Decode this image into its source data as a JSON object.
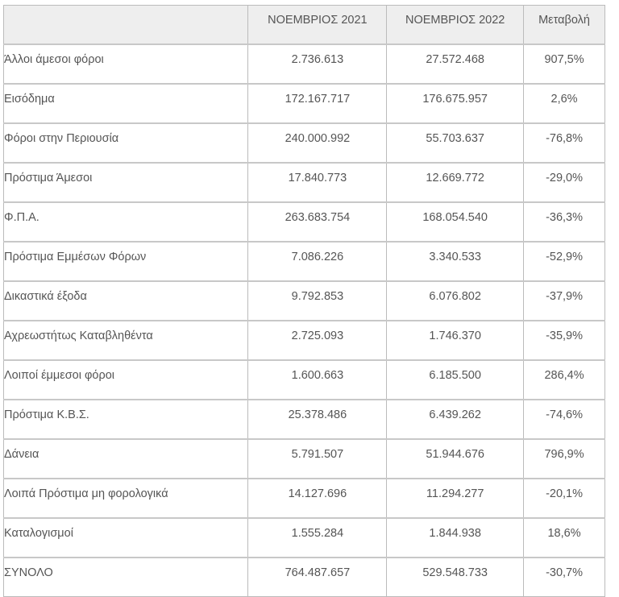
{
  "headers": [
    "",
    "ΝΟΕΜΒΡΙΟΣ 2021",
    "ΝΟΕΜΒΡΙΟΣ 2022",
    "Μεταβολή"
  ],
  "rows": [
    [
      "Άλλοι άμεσοι φόροι",
      "2.736.613",
      "27.572.468",
      "907,5%"
    ],
    [
      "Εισόδημα",
      "172.167.717",
      "176.675.957",
      "2,6%"
    ],
    [
      "Φόροι στην Περιουσία",
      "240.000.992",
      "55.703.637",
      "-76,8%"
    ],
    [
      "Πρόστιμα  Άμεσοι",
      "17.840.773",
      "12.669.772",
      "-29,0%"
    ],
    [
      "Φ.Π.Α.",
      "263.683.754",
      "168.054.540",
      "-36,3%"
    ],
    [
      "Πρόστιμα Εμμέσων Φόρων",
      "7.086.226",
      "3.340.533",
      "-52,9%"
    ],
    [
      "Δικαστικά έξοδα",
      "9.792.853",
      "6.076.802",
      "-37,9%"
    ],
    [
      "Αχρεωστήτως Καταβληθέντα",
      "2.725.093",
      "1.746.370",
      "-35,9%"
    ],
    [
      "Λοιποί έμμεσοι φόροι",
      "1.600.663",
      "6.185.500",
      "286,4%"
    ],
    [
      "Πρόστιμα Κ.Β.Σ.",
      "25.378.486",
      "6.439.262",
      "-74,6%"
    ],
    [
      "Δάνεια",
      "5.791.507",
      "51.944.676",
      "796,9%"
    ],
    [
      "Λοιπά Πρόστιμα μη φορολογικά",
      "14.127.696",
      "11.294.277",
      "-20,1%"
    ],
    [
      "Καταλογισμοί",
      "1.555.284",
      "1.844.938",
      "18,6%"
    ],
    [
      "ΣΥΝΟΛΟ",
      "764.487.657",
      "529.548.733",
      "-30,7%"
    ]
  ]
}
